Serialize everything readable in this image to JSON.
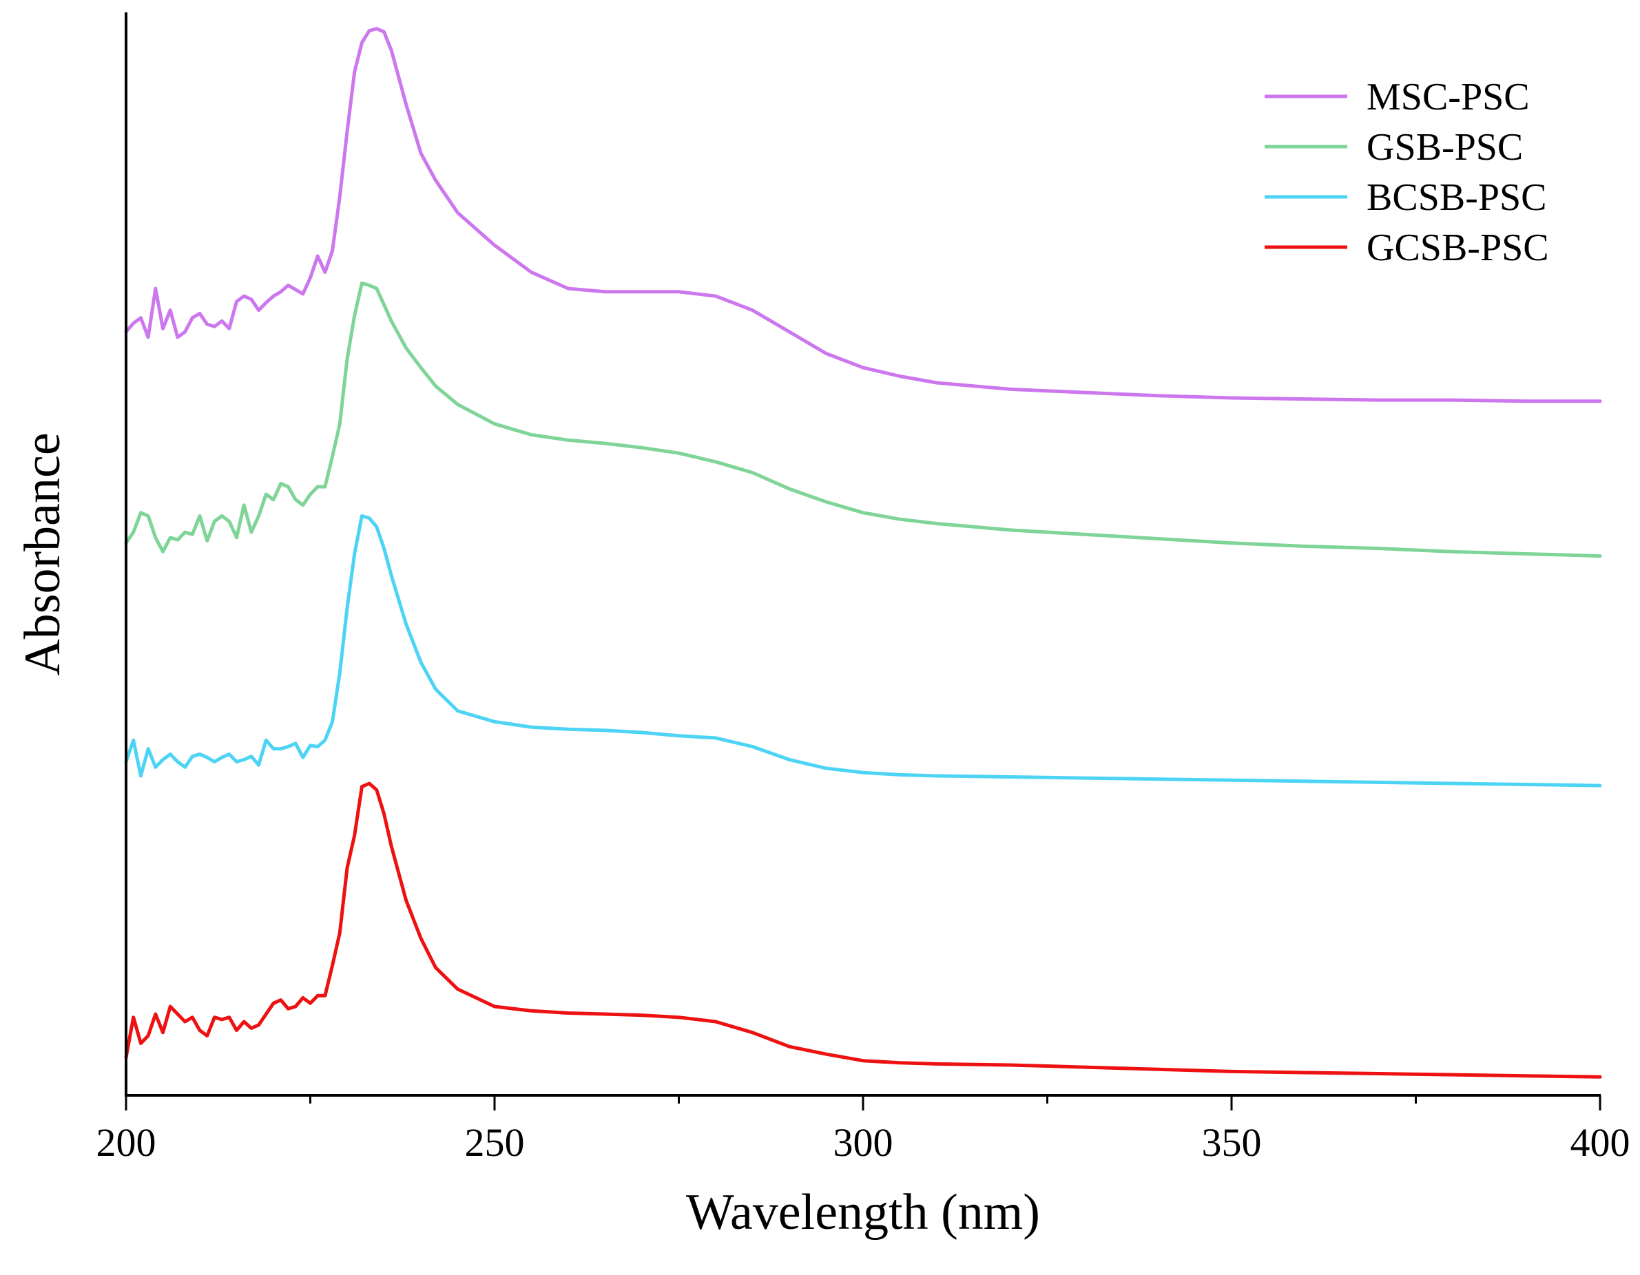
{
  "chart_data": {
    "type": "line",
    "xlabel": "Wavelength (nm)",
    "ylabel": "Absorbance",
    "xlim": [
      200,
      400
    ],
    "ylim": [
      0,
      10
    ],
    "xticks": [
      200,
      250,
      300,
      350,
      400
    ],
    "minor_xticks": [
      225,
      275,
      325,
      375
    ],
    "yticks_shown": false,
    "grid": false,
    "legend_position": "top-right",
    "series": [
      {
        "name": "MSC-PSC",
        "color": "#cc77ee",
        "points": [
          [
            200,
            7.05
          ],
          [
            201,
            7.13
          ],
          [
            202,
            7.18
          ],
          [
            203,
            7.0
          ],
          [
            204,
            7.45
          ],
          [
            205,
            7.08
          ],
          [
            206,
            7.25
          ],
          [
            207,
            7.0
          ],
          [
            208,
            7.05
          ],
          [
            209,
            7.18
          ],
          [
            210,
            7.22
          ],
          [
            211,
            7.12
          ],
          [
            212,
            7.1
          ],
          [
            213,
            7.15
          ],
          [
            214,
            7.08
          ],
          [
            215,
            7.33
          ],
          [
            216,
            7.38
          ],
          [
            217,
            7.35
          ],
          [
            218,
            7.25
          ],
          [
            219,
            7.32
          ],
          [
            220,
            7.38
          ],
          [
            221,
            7.42
          ],
          [
            222,
            7.48
          ],
          [
            223,
            7.44
          ],
          [
            224,
            7.4
          ],
          [
            225,
            7.55
          ],
          [
            226,
            7.75
          ],
          [
            227,
            7.6
          ],
          [
            228,
            7.8
          ],
          [
            229,
            8.3
          ],
          [
            230,
            8.9
          ],
          [
            231,
            9.45
          ],
          [
            232,
            9.72
          ],
          [
            233,
            9.83
          ],
          [
            234,
            9.85
          ],
          [
            235,
            9.82
          ],
          [
            236,
            9.65
          ],
          [
            237,
            9.4
          ],
          [
            238,
            9.15
          ],
          [
            240,
            8.7
          ],
          [
            242,
            8.45
          ],
          [
            245,
            8.15
          ],
          [
            250,
            7.85
          ],
          [
            255,
            7.6
          ],
          [
            260,
            7.45
          ],
          [
            265,
            7.42
          ],
          [
            270,
            7.42
          ],
          [
            275,
            7.42
          ],
          [
            280,
            7.38
          ],
          [
            285,
            7.25
          ],
          [
            290,
            7.05
          ],
          [
            295,
            6.85
          ],
          [
            300,
            6.72
          ],
          [
            305,
            6.64
          ],
          [
            310,
            6.58
          ],
          [
            320,
            6.52
          ],
          [
            330,
            6.49
          ],
          [
            340,
            6.46
          ],
          [
            350,
            6.44
          ],
          [
            360,
            6.43
          ],
          [
            370,
            6.42
          ],
          [
            380,
            6.42
          ],
          [
            390,
            6.41
          ],
          [
            400,
            6.41
          ]
        ]
      },
      {
        "name": "GSB-PSC",
        "color": "#7fd497",
        "points": [
          [
            200,
            5.1
          ],
          [
            201,
            5.2
          ],
          [
            202,
            5.38
          ],
          [
            203,
            5.35
          ],
          [
            204,
            5.15
          ],
          [
            205,
            5.02
          ],
          [
            206,
            5.15
          ],
          [
            207,
            5.13
          ],
          [
            208,
            5.2
          ],
          [
            209,
            5.18
          ],
          [
            210,
            5.35
          ],
          [
            211,
            5.12
          ],
          [
            212,
            5.3
          ],
          [
            213,
            5.35
          ],
          [
            214,
            5.3
          ],
          [
            215,
            5.15
          ],
          [
            216,
            5.45
          ],
          [
            217,
            5.2
          ],
          [
            218,
            5.35
          ],
          [
            219,
            5.55
          ],
          [
            220,
            5.5
          ],
          [
            221,
            5.65
          ],
          [
            222,
            5.62
          ],
          [
            223,
            5.5
          ],
          [
            224,
            5.45
          ],
          [
            225,
            5.55
          ],
          [
            226,
            5.62
          ],
          [
            227,
            5.62
          ],
          [
            228,
            5.9
          ],
          [
            229,
            6.2
          ],
          [
            230,
            6.8
          ],
          [
            231,
            7.2
          ],
          [
            232,
            7.5
          ],
          [
            233,
            7.48
          ],
          [
            234,
            7.45
          ],
          [
            235,
            7.3
          ],
          [
            236,
            7.15
          ],
          [
            238,
            6.9
          ],
          [
            240,
            6.72
          ],
          [
            242,
            6.55
          ],
          [
            245,
            6.38
          ],
          [
            250,
            6.2
          ],
          [
            255,
            6.1
          ],
          [
            260,
            6.05
          ],
          [
            265,
            6.02
          ],
          [
            270,
            5.98
          ],
          [
            275,
            5.93
          ],
          [
            280,
            5.85
          ],
          [
            285,
            5.75
          ],
          [
            290,
            5.6
          ],
          [
            295,
            5.48
          ],
          [
            300,
            5.38
          ],
          [
            305,
            5.32
          ],
          [
            310,
            5.28
          ],
          [
            320,
            5.22
          ],
          [
            330,
            5.18
          ],
          [
            340,
            5.14
          ],
          [
            350,
            5.1
          ],
          [
            360,
            5.07
          ],
          [
            370,
            5.05
          ],
          [
            380,
            5.02
          ],
          [
            390,
            5.0
          ],
          [
            400,
            4.98
          ]
        ]
      },
      {
        "name": "BCSB-PSC",
        "color": "#4dd4f5",
        "points": [
          [
            200,
            3.08
          ],
          [
            201,
            3.28
          ],
          [
            202,
            2.95
          ],
          [
            203,
            3.2
          ],
          [
            204,
            3.03
          ],
          [
            205,
            3.1
          ],
          [
            206,
            3.15
          ],
          [
            207,
            3.08
          ],
          [
            208,
            3.03
          ],
          [
            209,
            3.13
          ],
          [
            210,
            3.15
          ],
          [
            211,
            3.12
          ],
          [
            212,
            3.08
          ],
          [
            213,
            3.12
          ],
          [
            214,
            3.15
          ],
          [
            215,
            3.08
          ],
          [
            216,
            3.1
          ],
          [
            217,
            3.13
          ],
          [
            218,
            3.05
          ],
          [
            219,
            3.28
          ],
          [
            220,
            3.2
          ],
          [
            221,
            3.2
          ],
          [
            222,
            3.22
          ],
          [
            223,
            3.25
          ],
          [
            224,
            3.12
          ],
          [
            225,
            3.23
          ],
          [
            226,
            3.22
          ],
          [
            227,
            3.28
          ],
          [
            228,
            3.45
          ],
          [
            229,
            3.9
          ],
          [
            230,
            4.5
          ],
          [
            231,
            5.0
          ],
          [
            232,
            5.35
          ],
          [
            233,
            5.33
          ],
          [
            234,
            5.25
          ],
          [
            235,
            5.05
          ],
          [
            236,
            4.8
          ],
          [
            238,
            4.35
          ],
          [
            240,
            4.0
          ],
          [
            242,
            3.75
          ],
          [
            245,
            3.55
          ],
          [
            250,
            3.45
          ],
          [
            255,
            3.4
          ],
          [
            260,
            3.38
          ],
          [
            265,
            3.37
          ],
          [
            270,
            3.35
          ],
          [
            275,
            3.32
          ],
          [
            280,
            3.3
          ],
          [
            285,
            3.22
          ],
          [
            290,
            3.1
          ],
          [
            295,
            3.02
          ],
          [
            300,
            2.98
          ],
          [
            305,
            2.96
          ],
          [
            310,
            2.95
          ],
          [
            320,
            2.94
          ],
          [
            330,
            2.93
          ],
          [
            340,
            2.92
          ],
          [
            350,
            2.91
          ],
          [
            360,
            2.9
          ],
          [
            370,
            2.89
          ],
          [
            380,
            2.88
          ],
          [
            390,
            2.87
          ],
          [
            400,
            2.86
          ]
        ]
      },
      {
        "name": "GCSB-PSC",
        "color": "#ee1111",
        "points": [
          [
            200,
            0.35
          ],
          [
            201,
            0.72
          ],
          [
            202,
            0.48
          ],
          [
            203,
            0.55
          ],
          [
            204,
            0.75
          ],
          [
            205,
            0.58
          ],
          [
            206,
            0.82
          ],
          [
            207,
            0.75
          ],
          [
            208,
            0.68
          ],
          [
            209,
            0.72
          ],
          [
            210,
            0.6
          ],
          [
            211,
            0.55
          ],
          [
            212,
            0.72
          ],
          [
            213,
            0.7
          ],
          [
            214,
            0.72
          ],
          [
            215,
            0.6
          ],
          [
            216,
            0.68
          ],
          [
            217,
            0.62
          ],
          [
            218,
            0.65
          ],
          [
            219,
            0.75
          ],
          [
            220,
            0.85
          ],
          [
            221,
            0.88
          ],
          [
            222,
            0.8
          ],
          [
            223,
            0.82
          ],
          [
            224,
            0.9
          ],
          [
            225,
            0.85
          ],
          [
            226,
            0.92
          ],
          [
            227,
            0.92
          ],
          [
            228,
            1.2
          ],
          [
            229,
            1.5
          ],
          [
            230,
            2.1
          ],
          [
            231,
            2.4
          ],
          [
            232,
            2.85
          ],
          [
            233,
            2.88
          ],
          [
            234,
            2.82
          ],
          [
            235,
            2.6
          ],
          [
            236,
            2.3
          ],
          [
            238,
            1.8
          ],
          [
            240,
            1.45
          ],
          [
            242,
            1.18
          ],
          [
            245,
            0.98
          ],
          [
            250,
            0.82
          ],
          [
            255,
            0.78
          ],
          [
            260,
            0.76
          ],
          [
            265,
            0.75
          ],
          [
            270,
            0.74
          ],
          [
            275,
            0.72
          ],
          [
            280,
            0.68
          ],
          [
            285,
            0.58
          ],
          [
            290,
            0.45
          ],
          [
            295,
            0.38
          ],
          [
            300,
            0.32
          ],
          [
            305,
            0.3
          ],
          [
            310,
            0.29
          ],
          [
            320,
            0.28
          ],
          [
            330,
            0.26
          ],
          [
            340,
            0.24
          ],
          [
            350,
            0.22
          ],
          [
            360,
            0.21
          ],
          [
            370,
            0.2
          ],
          [
            380,
            0.19
          ],
          [
            390,
            0.18
          ],
          [
            400,
            0.17
          ]
        ]
      }
    ]
  }
}
